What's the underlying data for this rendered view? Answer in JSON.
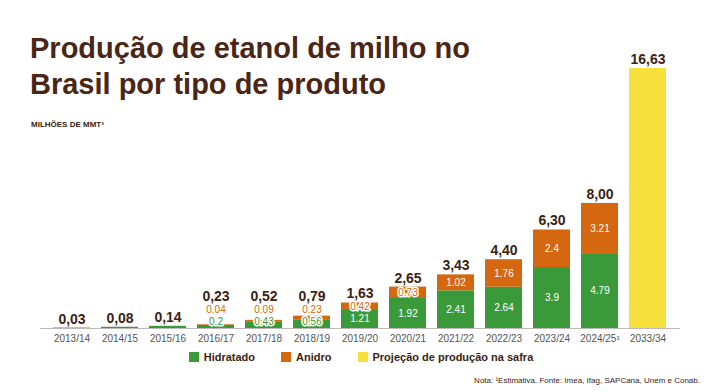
{
  "chart_data": {
    "type": "bar",
    "title": "Produção de etanol de milho no Brasil por tipo de produto",
    "subtitle": "MILHÕES DE MMT³",
    "note": "Nota: ¹Estimativa. Fonte: Imea, Ifag, SAPCana, Unem e Conab.",
    "categories": [
      "2013/14",
      "2014/15",
      "2015/16",
      "2016/17",
      "2017/18",
      "2018/19",
      "2019/20",
      "2020/21",
      "2021/22",
      "2022/23",
      "2023/24",
      "2024/25¹",
      "2033/34"
    ],
    "series": [
      {
        "name": "Hidratado",
        "color": "#3a9a3a",
        "values": [
          0.03,
          0.08,
          0.14,
          0.2,
          0.43,
          0.56,
          1.21,
          1.92,
          2.41,
          2.64,
          3.9,
          4.79,
          null
        ],
        "value_labels": [
          null,
          null,
          null,
          "0.2",
          "0.43",
          "0.56",
          "1.21",
          "1.92",
          "2.41",
          "2.64",
          "3.9",
          "4.79",
          null
        ]
      },
      {
        "name": "Anidro",
        "color": "#d4670f",
        "values": [
          null,
          null,
          null,
          0.04,
          0.09,
          0.23,
          0.42,
          0.73,
          1.02,
          1.76,
          2.4,
          3.21,
          null
        ],
        "value_labels": [
          null,
          null,
          null,
          "0.04",
          "0.09",
          "0.23",
          "0.42",
          "0.73",
          "1.02",
          "1.76",
          "2.4",
          "3.21",
          null
        ]
      },
      {
        "name": "Projeção de produção na safra",
        "color": "#f6e03c",
        "values": [
          null,
          null,
          null,
          null,
          null,
          null,
          null,
          null,
          null,
          null,
          null,
          null,
          16.63
        ],
        "value_labels": [
          null,
          null,
          null,
          null,
          null,
          null,
          null,
          null,
          null,
          null,
          null,
          null,
          null
        ]
      }
    ],
    "totals": [
      0.03,
      0.08,
      0.14,
      0.23,
      0.52,
      0.79,
      1.63,
      2.65,
      3.43,
      4.4,
      6.3,
      8,
      16.63
    ],
    "total_labels": [
      "0,03",
      "0,08",
      "0,14",
      "0,23",
      "0,52",
      "0,79",
      "1,63",
      "2,65",
      "3,43",
      "4,40",
      "6,30",
      "8,00",
      "16,63"
    ],
    "ylim": [
      0,
      16.63
    ],
    "stacked": true,
    "data_labels": true,
    "tick_labels": "x",
    "legend": "bottom",
    "grid": false
  }
}
